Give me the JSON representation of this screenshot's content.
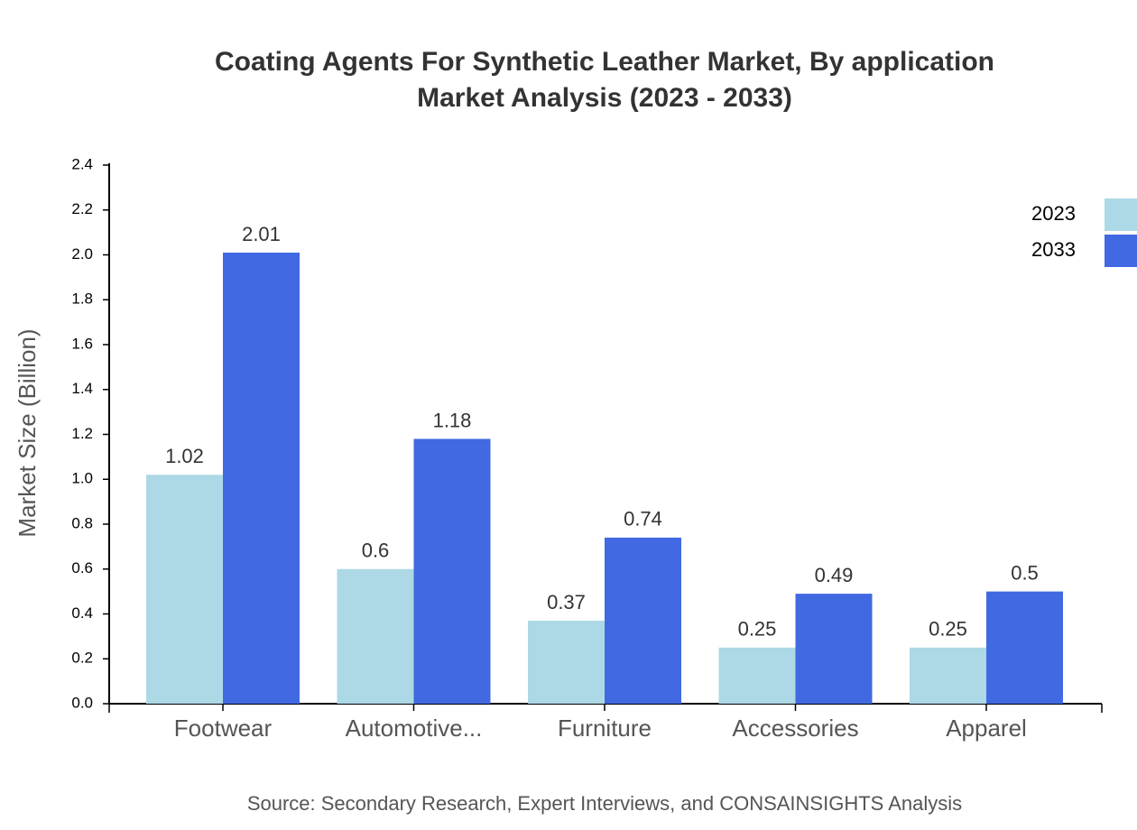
{
  "chart_data": {
    "type": "bar",
    "title": [
      "Coating Agents For Synthetic Leather Market, By application",
      "Market Analysis (2023 - 2033)"
    ],
    "y_label": "Market Size (Billion)",
    "source": "Source: Secondary Research, Expert Interviews, and CONSAINSIGHTS Analysis",
    "categories": [
      "Footwear",
      "Automotive...",
      "Furniture",
      "Accessories",
      "Apparel"
    ],
    "series": [
      {
        "name": "2023",
        "color": "#add8e6",
        "values": [
          1.02,
          0.6,
          0.37,
          0.25,
          0.25
        ]
      },
      {
        "name": "2033",
        "color": "#4169e1",
        "values": [
          2.01,
          1.18,
          0.74,
          0.49,
          0.5
        ]
      }
    ],
    "ylim": [
      0,
      2.4
    ],
    "yticks": [
      {
        "value": 0,
        "label": "0.0"
      },
      0.2,
      0.4,
      0.6,
      0.8,
      {
        "value": 1,
        "label": "1.0"
      },
      1.2,
      1.4,
      1.6,
      1.8,
      {
        "value": 2,
        "label": "2.0"
      },
      2.2,
      2.4
    ],
    "legend": "top-right"
  }
}
